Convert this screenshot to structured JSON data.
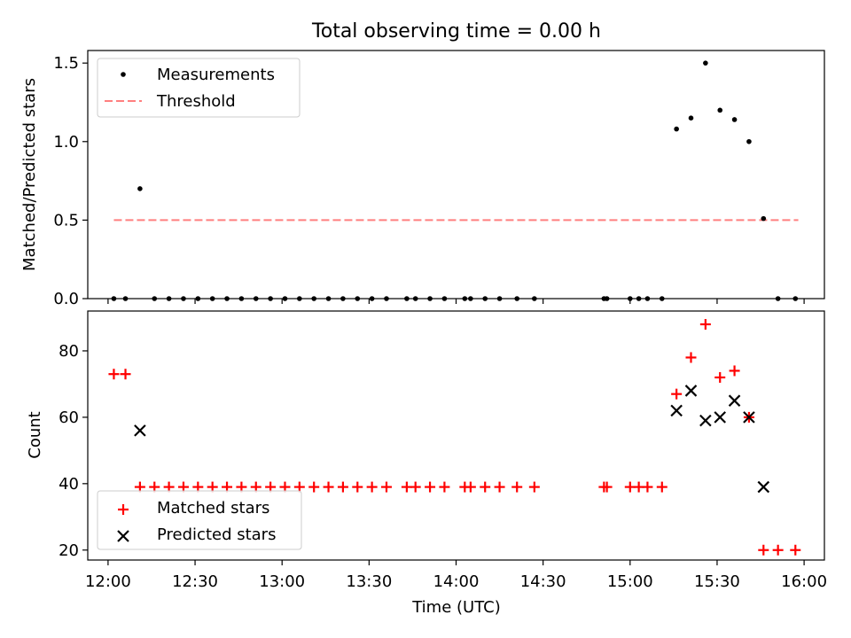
{
  "title": "Total observing time = 0.00 h",
  "chart_data": [
    {
      "type": "scatter",
      "panel": "top",
      "xlabel": "",
      "ylabel": "Matched/Predicted stars",
      "xlim": [
        "11:53",
        "16:07"
      ],
      "ylim": [
        0,
        1.58
      ],
      "x_ticks": [
        "12:00",
        "12:30",
        "13:00",
        "13:30",
        "14:00",
        "14:30",
        "15:00",
        "15:30",
        "16:00"
      ],
      "y_ticks": [
        "0.0",
        "0.5",
        "1.0",
        "1.5"
      ],
      "grid": false,
      "legend": "top-left",
      "threshold": {
        "name": "Threshold",
        "y": 0.5,
        "x_range": [
          "12:02",
          "15:58"
        ],
        "color": "#ff7f7f"
      },
      "series": [
        {
          "name": "Measurements",
          "color": "#000000",
          "marker": "dot",
          "points": [
            [
              "12:02",
              0.0
            ],
            [
              "12:06",
              0.0
            ],
            [
              "12:11",
              0.7
            ],
            [
              "12:16",
              0.0
            ],
            [
              "12:21",
              0.0
            ],
            [
              "12:26",
              0.0
            ],
            [
              "12:31",
              0.0
            ],
            [
              "12:36",
              0.0
            ],
            [
              "12:41",
              0.0
            ],
            [
              "12:46",
              0.0
            ],
            [
              "12:51",
              0.0
            ],
            [
              "12:56",
              0.0
            ],
            [
              "13:01",
              0.0
            ],
            [
              "13:06",
              0.0
            ],
            [
              "13:11",
              0.0
            ],
            [
              "13:16",
              0.0
            ],
            [
              "13:21",
              0.0
            ],
            [
              "13:26",
              0.0
            ],
            [
              "13:31",
              0.0
            ],
            [
              "13:36",
              0.0
            ],
            [
              "13:43",
              0.0
            ],
            [
              "13:46",
              0.0
            ],
            [
              "13:51",
              0.0
            ],
            [
              "13:56",
              0.0
            ],
            [
              "14:03",
              0.0
            ],
            [
              "14:05",
              0.0
            ],
            [
              "14:10",
              0.0
            ],
            [
              "14:15",
              0.0
            ],
            [
              "14:21",
              0.0
            ],
            [
              "14:27",
              0.0
            ],
            [
              "14:51",
              0.0
            ],
            [
              "14:52",
              0.0
            ],
            [
              "15:00",
              0.0
            ],
            [
              "15:03",
              0.0
            ],
            [
              "15:06",
              0.0
            ],
            [
              "15:11",
              0.0
            ],
            [
              "15:16",
              1.08
            ],
            [
              "15:21",
              1.15
            ],
            [
              "15:26",
              1.5
            ],
            [
              "15:31",
              1.2
            ],
            [
              "15:36",
              1.14
            ],
            [
              "15:41",
              1.0
            ],
            [
              "15:46",
              0.51
            ],
            [
              "15:51",
              0.0
            ],
            [
              "15:57",
              0.0
            ]
          ]
        }
      ]
    },
    {
      "type": "scatter",
      "panel": "bottom",
      "xlabel": "Time (UTC)",
      "ylabel": "Count",
      "xlim": [
        "11:53",
        "16:07"
      ],
      "ylim": [
        17,
        92
      ],
      "x_ticks": [
        "12:00",
        "12:30",
        "13:00",
        "13:30",
        "14:00",
        "14:30",
        "15:00",
        "15:30",
        "16:00"
      ],
      "y_ticks": [
        "20",
        "40",
        "60",
        "80"
      ],
      "grid": false,
      "legend": "bottom-left",
      "series": [
        {
          "name": "Matched stars",
          "color": "#ff0000",
          "marker": "plus",
          "points": [
            [
              "12:02",
              73
            ],
            [
              "12:06",
              73
            ],
            [
              "12:11",
              39
            ],
            [
              "12:16",
              39
            ],
            [
              "12:21",
              39
            ],
            [
              "12:26",
              39
            ],
            [
              "12:31",
              39
            ],
            [
              "12:36",
              39
            ],
            [
              "12:41",
              39
            ],
            [
              "12:46",
              39
            ],
            [
              "12:51",
              39
            ],
            [
              "12:56",
              39
            ],
            [
              "13:01",
              39
            ],
            [
              "13:06",
              39
            ],
            [
              "13:11",
              39
            ],
            [
              "13:16",
              39
            ],
            [
              "13:21",
              39
            ],
            [
              "13:26",
              39
            ],
            [
              "13:31",
              39
            ],
            [
              "13:36",
              39
            ],
            [
              "13:43",
              39
            ],
            [
              "13:46",
              39
            ],
            [
              "13:51",
              39
            ],
            [
              "13:56",
              39
            ],
            [
              "14:03",
              39
            ],
            [
              "14:05",
              39
            ],
            [
              "14:10",
              39
            ],
            [
              "14:15",
              39
            ],
            [
              "14:21",
              39
            ],
            [
              "14:27",
              39
            ],
            [
              "14:51",
              39
            ],
            [
              "14:52",
              39
            ],
            [
              "15:00",
              39
            ],
            [
              "15:03",
              39
            ],
            [
              "15:06",
              39
            ],
            [
              "15:11",
              39
            ],
            [
              "15:16",
              67
            ],
            [
              "15:21",
              78
            ],
            [
              "15:26",
              88
            ],
            [
              "15:31",
              72
            ],
            [
              "15:36",
              74
            ],
            [
              "15:41",
              60
            ],
            [
              "15:46",
              20
            ],
            [
              "15:51",
              20
            ],
            [
              "15:57",
              20
            ]
          ]
        },
        {
          "name": "Predicted stars",
          "color": "#000000",
          "marker": "x",
          "points": [
            [
              "12:11",
              56
            ],
            [
              "15:16",
              62
            ],
            [
              "15:21",
              68
            ],
            [
              "15:26",
              59
            ],
            [
              "15:31",
              60
            ],
            [
              "15:36",
              65
            ],
            [
              "15:41",
              60
            ],
            [
              "15:46",
              39
            ]
          ]
        }
      ]
    }
  ]
}
